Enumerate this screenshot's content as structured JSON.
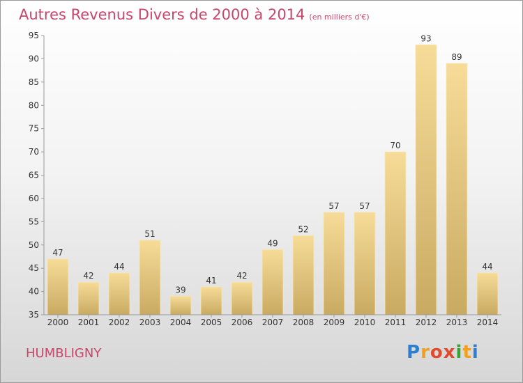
{
  "title": "Autres Revenus Divers de 2000 à 2014",
  "subtitle": "(en milliers d'€)",
  "commune": "HUMBLIGNY",
  "logo": {
    "letters": [
      "P",
      "r",
      "o",
      "x",
      "i",
      "t",
      "i"
    ],
    "colors": [
      "#2f7fd0",
      "#f0a01e",
      "#e24a2e",
      "#e24a2e",
      "#3aa236",
      "#f0a01e",
      "#2f7fd0"
    ]
  },
  "colors": {
    "bar_light": "#f6dc98",
    "bar_dark": "#c9aa62",
    "text": "#333333",
    "accent": "#c8466b"
  },
  "chart_data": {
    "type": "bar",
    "title": "Autres Revenus Divers de 2000 à 2014",
    "categories": [
      "2000",
      "2001",
      "2002",
      "2003",
      "2004",
      "2005",
      "2006",
      "2007",
      "2008",
      "2009",
      "2010",
      "2011",
      "2012",
      "2013",
      "2014"
    ],
    "values": [
      47,
      42,
      44,
      51,
      39,
      41,
      42,
      49,
      52,
      57,
      57,
      70,
      93,
      89,
      44
    ],
    "ylim": [
      35,
      95
    ],
    "yticks": [
      35,
      40,
      45,
      50,
      55,
      60,
      65,
      70,
      75,
      80,
      85,
      90,
      95
    ],
    "grid": false,
    "data_labels": true
  }
}
